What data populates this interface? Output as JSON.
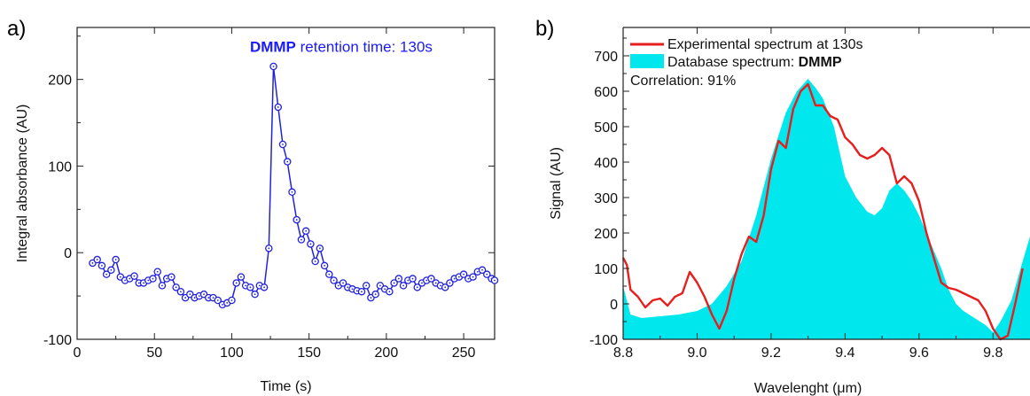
{
  "chart_data": [
    {
      "panel_label": "a)",
      "type": "line",
      "title": "",
      "xlabel": "Time (s)",
      "ylabel": "Integral absorbance (AU)",
      "xlim": [
        0,
        270
      ],
      "ylim": [
        -100,
        260
      ],
      "xticks": [
        0,
        50,
        100,
        150,
        200,
        250
      ],
      "yticks": [
        -100,
        0,
        100,
        200
      ],
      "grid": false,
      "annotation": {
        "bold": "DMMP",
        "text": " retention time: 130s",
        "color": "#1a1aff"
      },
      "series": [
        {
          "color": "#2222dd",
          "marker": "circle-open",
          "x": [
            10,
            13,
            16,
            19,
            22,
            25,
            28,
            31,
            34,
            37,
            40,
            43,
            46,
            49,
            52,
            55,
            58,
            61,
            64,
            67,
            70,
            73,
            76,
            79,
            82,
            85,
            88,
            91,
            94,
            97,
            100,
            103,
            106,
            109,
            112,
            115,
            118,
            121,
            124,
            127,
            130,
            133,
            136,
            139,
            142,
            145,
            148,
            151,
            154,
            157,
            160,
            163,
            166,
            169,
            172,
            175,
            178,
            181,
            184,
            187,
            190,
            193,
            196,
            199,
            202,
            205,
            208,
            211,
            214,
            217,
            220,
            223,
            226,
            229,
            232,
            235,
            238,
            241,
            244,
            247,
            250,
            253,
            256,
            259,
            262,
            265,
            268,
            270
          ],
          "y": [
            -12,
            -8,
            -15,
            -25,
            -20,
            -8,
            -28,
            -32,
            -30,
            -27,
            -35,
            -35,
            -32,
            -30,
            -22,
            -38,
            -30,
            -28,
            -40,
            -45,
            -52,
            -48,
            -52,
            -50,
            -48,
            -52,
            -52,
            -55,
            -60,
            -58,
            -55,
            -35,
            -28,
            -38,
            -40,
            -48,
            -38,
            -40,
            5,
            215,
            168,
            125,
            105,
            70,
            38,
            15,
            25,
            10,
            -10,
            5,
            -15,
            -25,
            -32,
            -38,
            -35,
            -40,
            -42,
            -44,
            -45,
            -38,
            -52,
            -48,
            -38,
            -42,
            -45,
            -35,
            -30,
            -38,
            -32,
            -30,
            -40,
            -35,
            -32,
            -30,
            -35,
            -38,
            -40,
            -35,
            -30,
            -28,
            -25,
            -30,
            -28,
            -22,
            -20,
            -25,
            -30,
            -32
          ]
        }
      ]
    },
    {
      "panel_label": "b)",
      "type": "area",
      "title": "",
      "xlabel": "Wavelenght (μm)",
      "ylabel": "Signal (AU)",
      "xlim": [
        8.8,
        9.9
      ],
      "ylim": [
        -100,
        780
      ],
      "xticks": [
        8.8,
        9.0,
        9.2,
        9.4,
        9.6,
        9.8
      ],
      "yticks": [
        -100,
        0,
        100,
        200,
        300,
        400,
        500,
        600,
        700
      ],
      "grid": false,
      "legend_placement": "top-left",
      "correlation_text": "Correlation: 91%",
      "series": [
        {
          "name": "Experimental spectrum at 130s",
          "type": "line",
          "color": "#e61e1e",
          "x": [
            8.8,
            8.81,
            8.82,
            8.84,
            8.86,
            8.88,
            8.9,
            8.92,
            8.94,
            8.96,
            8.98,
            9.0,
            9.02,
            9.04,
            9.06,
            9.08,
            9.1,
            9.12,
            9.14,
            9.16,
            9.18,
            9.2,
            9.22,
            9.24,
            9.26,
            9.28,
            9.3,
            9.32,
            9.34,
            9.36,
            9.38,
            9.4,
            9.42,
            9.44,
            9.46,
            9.48,
            9.5,
            9.52,
            9.54,
            9.56,
            9.58,
            9.6,
            9.62,
            9.64,
            9.66,
            9.68,
            9.7,
            9.72,
            9.74,
            9.76,
            9.78,
            9.8,
            9.82,
            9.84,
            9.86,
            9.88
          ],
          "y": [
            130,
            110,
            40,
            20,
            -10,
            10,
            15,
            -5,
            20,
            30,
            90,
            60,
            20,
            -30,
            -70,
            -20,
            70,
            140,
            190,
            175,
            250,
            380,
            460,
            440,
            550,
            600,
            620,
            560,
            560,
            530,
            520,
            470,
            450,
            420,
            410,
            420,
            440,
            420,
            340,
            360,
            340,
            290,
            200,
            130,
            60,
            45,
            40,
            30,
            20,
            10,
            -20,
            -70,
            -100,
            -90,
            0,
            100
          ]
        },
        {
          "name_prefix": "Database spectrum: ",
          "name_bold": "DMMP",
          "type": "area",
          "color": "#00e8ee",
          "x": [
            8.8,
            8.82,
            8.85,
            8.9,
            8.95,
            9.0,
            9.04,
            9.08,
            9.12,
            9.16,
            9.2,
            9.24,
            9.27,
            9.3,
            9.32,
            9.34,
            9.37,
            9.4,
            9.43,
            9.46,
            9.48,
            9.5,
            9.52,
            9.54,
            9.56,
            9.58,
            9.6,
            9.62,
            9.64,
            9.66,
            9.68,
            9.7,
            9.72,
            9.75,
            9.78,
            9.8,
            9.82,
            9.85,
            9.88,
            9.9
          ],
          "y": [
            50,
            -30,
            -40,
            -35,
            -30,
            -20,
            0,
            50,
            120,
            250,
            410,
            540,
            600,
            635,
            610,
            580,
            500,
            360,
            300,
            260,
            250,
            270,
            320,
            340,
            320,
            290,
            250,
            200,
            150,
            100,
            40,
            0,
            -20,
            -40,
            -60,
            -80,
            -50,
            10,
            120,
            190
          ]
        }
      ]
    }
  ]
}
